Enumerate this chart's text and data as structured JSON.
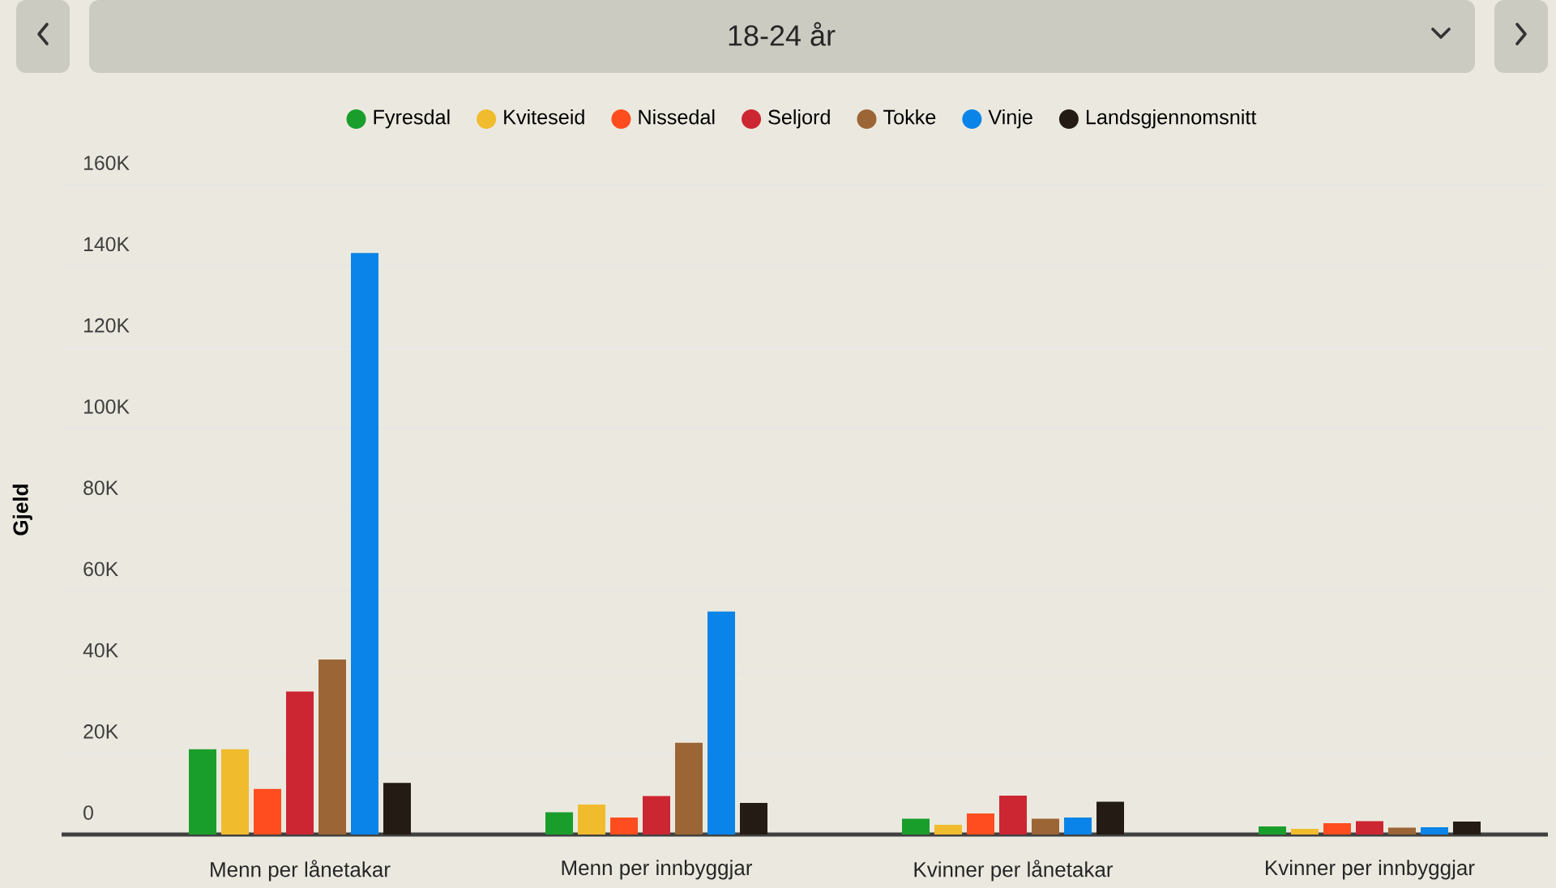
{
  "chart_data": {
    "type": "bar",
    "title": "18-24 år",
    "ylabel": "Gjeld",
    "categories": [
      "Menn per lånetakar",
      "Menn per innbyggjar",
      "Kvinner per lånetakar",
      "Kvinner per innbyggjar"
    ],
    "series": [
      {
        "name": "Fyresdal",
        "color": "#1a9e2b",
        "values": [
          21000,
          5500,
          3900,
          2000
        ]
      },
      {
        "name": "Kviteseid",
        "color": "#f0bc2e",
        "values": [
          21000,
          7400,
          2400,
          1400
        ]
      },
      {
        "name": "Nissedal",
        "color": "#ff4d1f",
        "values": [
          11200,
          4200,
          5200,
          2800
        ]
      },
      {
        "name": "Seljord",
        "color": "#cc2633",
        "values": [
          35200,
          9500,
          9600,
          3300
        ]
      },
      {
        "name": "Tokke",
        "color": "#9b6535",
        "values": [
          43100,
          22600,
          3900,
          1700
        ]
      },
      {
        "name": "Vinje",
        "color": "#0a84e8",
        "values": [
          143200,
          54900,
          4200,
          1800
        ]
      },
      {
        "name": "Landsgjennomsnitt",
        "color": "#241c14",
        "values": [
          12700,
          7800,
          8100,
          3200
        ]
      }
    ],
    "ylim": [
      0,
      160000
    ],
    "yticks": [
      0,
      {
        "value": 20000,
        "label": "20K"
      },
      {
        "value": 40000,
        "label": "40K"
      },
      {
        "value": 60000,
        "label": "60K"
      },
      {
        "value": 80000,
        "label": "80K"
      },
      {
        "value": 100000,
        "label": "100K"
      },
      {
        "value": 120000,
        "label": "120K"
      },
      {
        "value": 140000,
        "label": "140K"
      },
      {
        "value": 160000,
        "label": "160K"
      }
    ],
    "grid": "y",
    "legend": "top"
  }
}
